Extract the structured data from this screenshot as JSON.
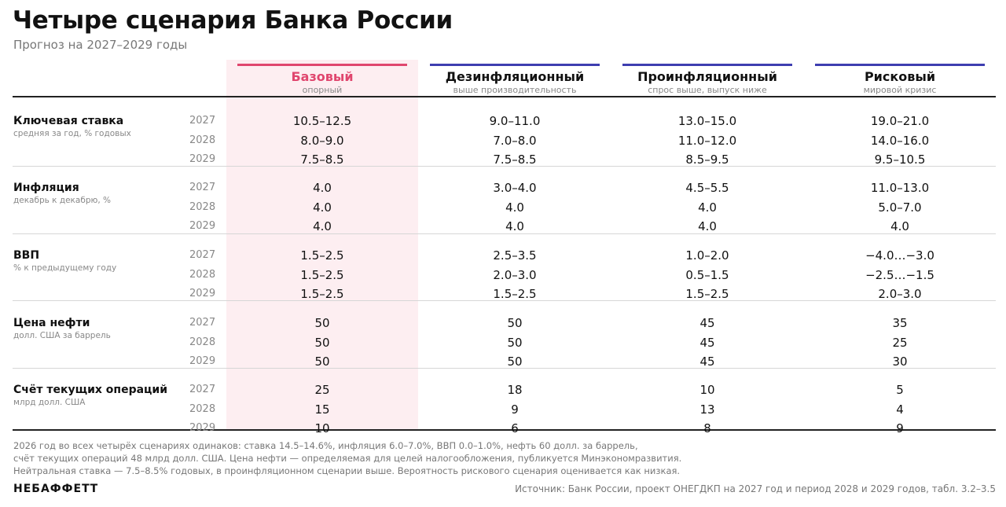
{
  "title": "Четыре сценария Банка России",
  "subtitle": "Прогноз на 2027–2029 годы",
  "colors": {
    "base": "#e0466e",
    "other": "#3e3eb0",
    "highlight_bg": "#fdeef1"
  },
  "chart_data": {
    "type": "table",
    "scenarios": [
      {
        "name": "Базовый",
        "sub": "опорный"
      },
      {
        "name": "Дезинфляционный",
        "sub": "выше производительность"
      },
      {
        "name": "Проинфляционный",
        "sub": "спрос выше, выпуск ниже"
      },
      {
        "name": "Рисковый",
        "sub": "мировой кризис"
      }
    ],
    "indicators": [
      {
        "name": "Ключевая ставка",
        "sub": "средняя за год, % годовых",
        "years": [
          "2027",
          "2028",
          "2029"
        ],
        "values": [
          [
            "10.5–12.5",
            "9.0–11.0",
            "13.0–15.0",
            "19.0–21.0"
          ],
          [
            "8.0–9.0",
            "7.0–8.0",
            "11.0–12.0",
            "14.0–16.0"
          ],
          [
            "7.5–8.5",
            "7.5–8.5",
            "8.5–9.5",
            "9.5–10.5"
          ]
        ]
      },
      {
        "name": "Инфляция",
        "sub": "декабрь к декабрю, %",
        "years": [
          "2027",
          "2028",
          "2029"
        ],
        "values": [
          [
            "4.0",
            "3.0–4.0",
            "4.5–5.5",
            "11.0–13.0"
          ],
          [
            "4.0",
            "4.0",
            "4.0",
            "5.0–7.0"
          ],
          [
            "4.0",
            "4.0",
            "4.0",
            "4.0"
          ]
        ]
      },
      {
        "name": "ВВП",
        "sub": "% к предыдущему году",
        "years": [
          "2027",
          "2028",
          "2029"
        ],
        "values": [
          [
            "1.5–2.5",
            "2.5–3.5",
            "1.0–2.0",
            "−4.0…−3.0"
          ],
          [
            "1.5–2.5",
            "2.0–3.0",
            "0.5–1.5",
            "−2.5…−1.5"
          ],
          [
            "1.5–2.5",
            "1.5–2.5",
            "1.5–2.5",
            "2.0–3.0"
          ]
        ]
      },
      {
        "name": "Цена нефти",
        "sub": "долл. США за баррель",
        "years": [
          "2027",
          "2028",
          "2029"
        ],
        "values": [
          [
            "50",
            "50",
            "45",
            "35"
          ],
          [
            "50",
            "50",
            "45",
            "25"
          ],
          [
            "50",
            "50",
            "45",
            "30"
          ]
        ]
      },
      {
        "name": "Счёт текущих операций",
        "sub": "млрд долл. США",
        "years": [
          "2027",
          "2028",
          "2029"
        ],
        "values": [
          [
            "25",
            "18",
            "10",
            "5"
          ],
          [
            "15",
            "9",
            "13",
            "4"
          ],
          [
            "10",
            "6",
            "8",
            "9"
          ]
        ]
      }
    ]
  },
  "notes": [
    "2026 год во всех четырёх сценариях одинаков: ставка 14.5–14.6%, инфляция 6.0–7.0%, ВВП 0.0–1.0%, нефть 60 долл. за баррель,",
    "счёт текущих операций 48 млрд долл. США. Цена нефти — определяемая для целей налогообложения, публикуется Минэкономразвития.",
    "Нейтральная ставка — 7.5–8.5% годовых, в проинфляционном сценарии выше. Вероятность рискового сценария оценивается как низкая."
  ],
  "brand": "НЕБАФФЕТТ",
  "source": "Источник: Банк России, проект ОНЕГДКП на 2027 год и период 2028 и 2029 годов, табл. 3.2–3.5"
}
